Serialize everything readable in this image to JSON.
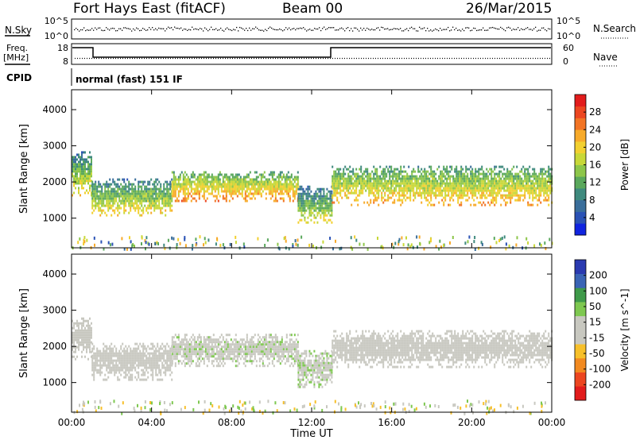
{
  "header": {
    "station": "Fort Hays East (fitACF)",
    "beam": "Beam 00",
    "date": "26/Mar/2015"
  },
  "strip": {
    "nsky_label": "N.Sky",
    "nsky_ticks": [
      "10^5",
      "10^0"
    ],
    "nsearch_label": "N.Search",
    "nsearch_ticks": [
      "10^5",
      "10^0"
    ],
    "freq_label": "Freq.",
    "freq_unit": "[MHz]",
    "freq_ticks": [
      "18",
      "8"
    ],
    "nave_label": "Nave",
    "nave_ticks": [
      "60",
      "0"
    ],
    "cpid_label": "CPID",
    "cpid_text": "normal (fast) 151 IF"
  },
  "chart_data": [
    {
      "type": "heatmap",
      "title": "",
      "xlabel": "Time UT",
      "ylabel": "Slant Range [km]",
      "x_ticks": [
        "00:00",
        "04:00",
        "08:00",
        "12:00",
        "16:00",
        "20:00",
        "00:00"
      ],
      "xlim_hours": [
        0,
        24
      ],
      "y_ticks": [
        "4000",
        "3000",
        "2000",
        "1000"
      ],
      "ylim": [
        180,
        4550
      ],
      "colorbar": {
        "label": "Power [dB]",
        "ticks": [
          "28",
          "24",
          "20",
          "16",
          "12",
          "8",
          "4"
        ],
        "range": [
          0,
          32
        ],
        "colors": [
          "#1024e0",
          "#2a52b5",
          "#3a6e9b",
          "#3f8a7e",
          "#5aa85c",
          "#8dc64a",
          "#c8d838",
          "#f2d030",
          "#f7aa2a",
          "#f27424",
          "#ec4620",
          "#e21c1c"
        ]
      },
      "echo_bands": [
        {
          "t0": 0.0,
          "t1": 1.0,
          "r0": 1650,
          "r1": 2850,
          "power": 14
        },
        {
          "t0": 1.0,
          "t1": 5.0,
          "r0": 1050,
          "r1": 2100,
          "power": 15
        },
        {
          "t0": 5.0,
          "t1": 11.3,
          "r0": 1500,
          "r1": 2300,
          "power": 18
        },
        {
          "t0": 11.3,
          "t1": 13.0,
          "r0": 850,
          "r1": 1900,
          "power": 13
        },
        {
          "t0": 13.0,
          "t1": 24.0,
          "r0": 1350,
          "r1": 2450,
          "power": 17
        }
      ]
    },
    {
      "type": "heatmap",
      "title": "",
      "xlabel": "Time UT",
      "ylabel": "Slant Range [km]",
      "x_ticks": [
        "00:00",
        "04:00",
        "08:00",
        "12:00",
        "16:00",
        "20:00",
        "00:00"
      ],
      "xlim_hours": [
        0,
        24
      ],
      "y_ticks": [
        "4000",
        "3000",
        "2000",
        "1000"
      ],
      "ylim": [
        180,
        4550
      ],
      "colorbar": {
        "label": "Velocity [m s^-1]",
        "ticks": [
          "200",
          "100",
          "50",
          "15",
          "-15",
          "-50",
          "-100",
          "-200"
        ],
        "range": [
          -250,
          250
        ],
        "colors": [
          "#e21c1c",
          "#ec4620",
          "#f28a20",
          "#f7c02a",
          "#c8c8c0",
          "#c8c8c0",
          "#7ec850",
          "#3f9a4a",
          "#3a64b5",
          "#2a3ab0"
        ]
      },
      "echo_bands": [
        {
          "t0": 0.0,
          "t1": 1.0,
          "r0": 1650,
          "r1": 2800,
          "velocity": 0
        },
        {
          "t0": 1.0,
          "t1": 5.0,
          "r0": 1050,
          "r1": 2100,
          "velocity": -5
        },
        {
          "t0": 5.0,
          "t1": 11.3,
          "r0": 1450,
          "r1": 2350,
          "velocity": 40
        },
        {
          "t0": 11.3,
          "t1": 13.0,
          "r0": 850,
          "r1": 1900,
          "velocity": 60
        },
        {
          "t0": 13.0,
          "t1": 24.0,
          "r0": 1400,
          "r1": 2450,
          "velocity": 0
        }
      ]
    }
  ]
}
